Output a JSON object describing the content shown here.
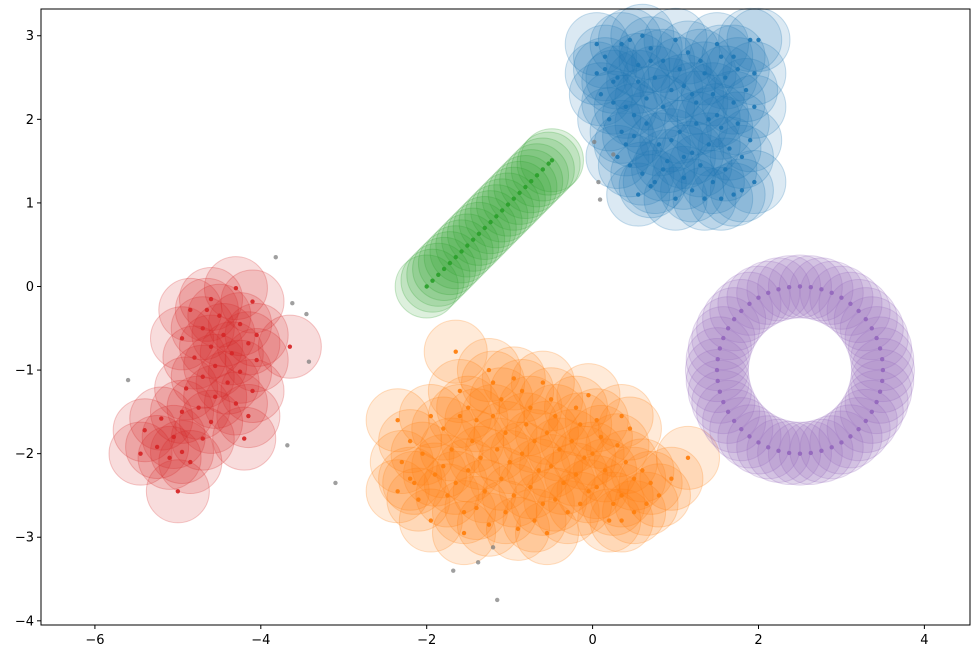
{
  "chart_data": {
    "type": "scatter",
    "title": "",
    "xlabel": "",
    "ylabel": "",
    "xlim": [
      -6.65,
      4.55
    ],
    "ylim": [
      -4.05,
      3.32
    ],
    "xticks": [
      -6,
      -4,
      -2,
      0,
      2,
      4
    ],
    "yticks": [
      -4,
      -3,
      -2,
      -1,
      0,
      1,
      2,
      3
    ],
    "xtick_labels": [
      "−6",
      "−4",
      "−2",
      "0",
      "2",
      "4"
    ],
    "ytick_labels": [
      "−4",
      "−3",
      "−2",
      "−1",
      "0",
      "1",
      "2",
      "3"
    ],
    "grid": false,
    "colors": {
      "blue": "#1f77b4",
      "orange": "#ff7f0e",
      "green": "#2ca02c",
      "red": "#d62728",
      "purple": "#9467bd",
      "noise": "#7f7f7f"
    },
    "halo_radius": 0.38,
    "series": [
      {
        "name": "blue cluster",
        "color": "blue",
        "halo": true,
        "points": [
          [
            0.05,
            2.9
          ],
          [
            0.15,
            2.6
          ],
          [
            0.3,
            2.5
          ],
          [
            0.45,
            2.95
          ],
          [
            0.6,
            3.0
          ],
          [
            0.7,
            2.85
          ],
          [
            0.85,
            2.7
          ],
          [
            1.0,
            2.95
          ],
          [
            1.15,
            2.8
          ],
          [
            1.3,
            2.7
          ],
          [
            1.5,
            2.9
          ],
          [
            1.7,
            2.75
          ],
          [
            1.9,
            2.95
          ],
          [
            2.0,
            2.95
          ],
          [
            0.1,
            2.3
          ],
          [
            0.25,
            2.2
          ],
          [
            0.4,
            2.15
          ],
          [
            0.55,
            2.45
          ],
          [
            0.75,
            2.5
          ],
          [
            0.95,
            2.35
          ],
          [
            1.1,
            2.4
          ],
          [
            1.25,
            2.2
          ],
          [
            1.45,
            2.3
          ],
          [
            1.6,
            2.5
          ],
          [
            1.85,
            2.35
          ],
          [
            1.95,
            2.15
          ],
          [
            0.2,
            2.0
          ],
          [
            0.35,
            1.85
          ],
          [
            0.5,
            1.8
          ],
          [
            0.65,
            1.95
          ],
          [
            0.8,
            1.7
          ],
          [
            1.05,
            1.85
          ],
          [
            1.2,
            1.6
          ],
          [
            1.4,
            1.7
          ],
          [
            1.55,
            1.9
          ],
          [
            1.75,
            1.95
          ],
          [
            1.9,
            1.75
          ],
          [
            0.3,
            1.55
          ],
          [
            0.45,
            1.45
          ],
          [
            0.6,
            1.35
          ],
          [
            0.75,
            1.25
          ],
          [
            0.9,
            1.5
          ],
          [
            1.1,
            1.3
          ],
          [
            1.3,
            1.45
          ],
          [
            1.45,
            1.25
          ],
          [
            1.6,
            1.4
          ],
          [
            1.8,
            1.15
          ],
          [
            1.95,
            1.25
          ],
          [
            0.55,
            1.1
          ],
          [
            0.7,
            1.2
          ],
          [
            1.0,
            1.05
          ],
          [
            1.2,
            1.15
          ],
          [
            1.55,
            1.05
          ],
          [
            1.7,
            1.1
          ],
          [
            0.15,
            2.75
          ],
          [
            0.55,
            2.65
          ],
          [
            1.35,
            2.55
          ],
          [
            1.75,
            2.6
          ],
          [
            0.85,
            2.15
          ],
          [
            1.5,
            2.05
          ],
          [
            0.25,
            2.45
          ],
          [
            1.05,
            2.6
          ],
          [
            0.65,
            2.25
          ],
          [
            1.8,
            1.55
          ],
          [
            1.25,
            1.95
          ],
          [
            0.4,
            1.7
          ],
          [
            0.95,
            1.75
          ],
          [
            1.65,
            1.65
          ],
          [
            1.35,
            1.05
          ],
          [
            0.85,
            1.4
          ],
          [
            0.05,
            2.55
          ],
          [
            1.95,
            2.55
          ],
          [
            0.35,
            2.9
          ],
          [
            1.55,
            2.75
          ],
          [
            0.7,
            2.7
          ],
          [
            1.2,
            2.3
          ],
          [
            1.4,
            2.0
          ],
          [
            1.1,
            1.55
          ],
          [
            0.5,
            2.05
          ],
          [
            1.7,
            2.2
          ]
        ]
      },
      {
        "name": "orange cluster",
        "color": "orange",
        "halo": true,
        "points": [
          [
            -2.35,
            -1.6
          ],
          [
            -2.2,
            -1.85
          ],
          [
            -2.3,
            -2.1
          ],
          [
            -2.2,
            -2.3
          ],
          [
            -2.35,
            -2.45
          ],
          [
            -2.1,
            -2.55
          ],
          [
            -1.95,
            -2.8
          ],
          [
            -1.95,
            -1.55
          ],
          [
            -1.8,
            -1.7
          ],
          [
            -1.7,
            -1.95
          ],
          [
            -1.8,
            -2.15
          ],
          [
            -1.65,
            -2.35
          ],
          [
            -1.75,
            -2.5
          ],
          [
            -1.55,
            -2.7
          ],
          [
            -1.5,
            -1.45
          ],
          [
            -1.6,
            -1.25
          ],
          [
            -1.4,
            -1.6
          ],
          [
            -1.45,
            -1.85
          ],
          [
            -1.35,
            -2.05
          ],
          [
            -1.5,
            -2.2
          ],
          [
            -1.3,
            -2.45
          ],
          [
            -1.4,
            -2.65
          ],
          [
            -1.25,
            -2.85
          ],
          [
            -1.2,
            -1.15
          ],
          [
            -1.1,
            -1.35
          ],
          [
            -1.2,
            -1.55
          ],
          [
            -1.05,
            -1.75
          ],
          [
            -1.15,
            -1.95
          ],
          [
            -1.0,
            -2.1
          ],
          [
            -1.1,
            -2.3
          ],
          [
            -0.95,
            -2.5
          ],
          [
            -1.05,
            -2.7
          ],
          [
            -0.9,
            -2.9
          ],
          [
            -0.85,
            -1.25
          ],
          [
            -0.75,
            -1.45
          ],
          [
            -0.8,
            -1.65
          ],
          [
            -0.7,
            -1.85
          ],
          [
            -0.85,
            -2.0
          ],
          [
            -0.65,
            -2.2
          ],
          [
            -0.75,
            -2.4
          ],
          [
            -0.6,
            -2.6
          ],
          [
            -0.7,
            -2.8
          ],
          [
            -0.5,
            -1.35
          ],
          [
            -0.45,
            -1.55
          ],
          [
            -0.55,
            -1.75
          ],
          [
            -0.4,
            -1.95
          ],
          [
            -0.5,
            -2.15
          ],
          [
            -0.35,
            -2.35
          ],
          [
            -0.45,
            -2.55
          ],
          [
            -0.3,
            -2.7
          ],
          [
            -0.2,
            -1.45
          ],
          [
            -0.15,
            -1.65
          ],
          [
            -0.25,
            -1.85
          ],
          [
            -0.1,
            -2.05
          ],
          [
            -0.2,
            -2.25
          ],
          [
            -0.05,
            -2.45
          ],
          [
            -0.15,
            -2.6
          ],
          [
            0.05,
            -1.6
          ],
          [
            0.1,
            -1.8
          ],
          [
            0.0,
            -2.0
          ],
          [
            0.15,
            -2.2
          ],
          [
            0.05,
            -2.4
          ],
          [
            0.25,
            -2.6
          ],
          [
            0.35,
            -1.55
          ],
          [
            0.45,
            -1.7
          ],
          [
            0.3,
            -1.9
          ],
          [
            0.4,
            -2.1
          ],
          [
            0.5,
            -2.3
          ],
          [
            0.35,
            -2.5
          ],
          [
            0.6,
            -2.2
          ],
          [
            0.7,
            -2.35
          ],
          [
            0.8,
            -2.5
          ],
          [
            0.95,
            -2.3
          ],
          [
            1.15,
            -2.05
          ],
          [
            0.5,
            -2.7
          ],
          [
            0.35,
            -2.8
          ],
          [
            -1.65,
            -0.78
          ],
          [
            -1.9,
            -2.25
          ],
          [
            -2.05,
            -2.0
          ],
          [
            -1.25,
            -1.0
          ],
          [
            -0.6,
            -1.15
          ],
          [
            -0.05,
            -1.3
          ],
          [
            0.2,
            -2.8
          ],
          [
            -0.95,
            -1.1
          ],
          [
            -1.55,
            -2.95
          ],
          [
            -0.55,
            -2.95
          ],
          [
            -2.15,
            -2.35
          ],
          [
            0.65,
            -2.6
          ],
          [
            -1.6,
            -1.55
          ]
        ]
      },
      {
        "name": "green diagonal",
        "color": "green",
        "halo": true,
        "points": [
          [
            -2.0,
            0.0
          ],
          [
            -1.93,
            0.07
          ],
          [
            -1.86,
            0.14
          ],
          [
            -1.79,
            0.21
          ],
          [
            -1.72,
            0.28
          ],
          [
            -1.65,
            0.35
          ],
          [
            -1.58,
            0.42
          ],
          [
            -1.51,
            0.49
          ],
          [
            -1.44,
            0.56
          ],
          [
            -1.37,
            0.63
          ],
          [
            -1.3,
            0.7
          ],
          [
            -1.23,
            0.77
          ],
          [
            -1.16,
            0.84
          ],
          [
            -1.09,
            0.91
          ],
          [
            -1.02,
            0.98
          ],
          [
            -0.95,
            1.05
          ],
          [
            -0.88,
            1.12
          ],
          [
            -0.81,
            1.19
          ],
          [
            -0.74,
            1.26
          ],
          [
            -0.67,
            1.33
          ],
          [
            -0.6,
            1.4
          ],
          [
            -0.53,
            1.47
          ],
          [
            -0.49,
            1.51
          ]
        ]
      },
      {
        "name": "red cluster",
        "color": "red",
        "halo": true,
        "points": [
          [
            -4.3,
            -0.02
          ],
          [
            -4.6,
            -0.15
          ],
          [
            -4.1,
            -0.18
          ],
          [
            -4.85,
            -0.28
          ],
          [
            -4.5,
            -0.35
          ],
          [
            -4.25,
            -0.45
          ],
          [
            -4.7,
            -0.5
          ],
          [
            -4.45,
            -0.58
          ],
          [
            -4.95,
            -0.62
          ],
          [
            -4.15,
            -0.68
          ],
          [
            -4.6,
            -0.72
          ],
          [
            -4.35,
            -0.8
          ],
          [
            -4.8,
            -0.85
          ],
          [
            -4.05,
            -0.88
          ],
          [
            -4.55,
            -0.95
          ],
          [
            -4.25,
            -1.02
          ],
          [
            -4.7,
            -1.08
          ],
          [
            -4.4,
            -1.15
          ],
          [
            -4.9,
            -1.22
          ],
          [
            -4.1,
            -1.25
          ],
          [
            -4.55,
            -1.32
          ],
          [
            -4.3,
            -1.4
          ],
          [
            -4.75,
            -1.45
          ],
          [
            -4.15,
            -1.55
          ],
          [
            -4.95,
            -1.5
          ],
          [
            -4.6,
            -1.62
          ],
          [
            -5.2,
            -1.58
          ],
          [
            -5.4,
            -1.72
          ],
          [
            -5.05,
            -1.8
          ],
          [
            -4.7,
            -1.82
          ],
          [
            -5.25,
            -1.92
          ],
          [
            -4.95,
            -1.98
          ],
          [
            -5.45,
            -2.0
          ],
          [
            -5.1,
            -2.05
          ],
          [
            -4.85,
            -2.1
          ],
          [
            -5.0,
            -2.45
          ],
          [
            -4.2,
            -1.82
          ],
          [
            -3.65,
            -0.72
          ],
          [
            -4.65,
            -0.28
          ],
          [
            -4.05,
            -0.58
          ]
        ]
      },
      {
        "name": "purple ring",
        "color": "purple",
        "halo": true,
        "ring": {
          "cx": 2.5,
          "cy": -1.0,
          "r": 1.0,
          "n": 48
        }
      },
      {
        "name": "noise",
        "color": "noise",
        "halo": false,
        "points": [
          [
            -3.82,
            0.35
          ],
          [
            -3.62,
            -0.2
          ],
          [
            -3.45,
            -0.33
          ],
          [
            -3.42,
            -0.9
          ],
          [
            -5.6,
            -1.12
          ],
          [
            -3.68,
            -1.9
          ],
          [
            -3.1,
            -2.35
          ],
          [
            -1.68,
            -3.4
          ],
          [
            -1.38,
            -3.3
          ],
          [
            -1.2,
            -3.12
          ],
          [
            -1.15,
            -3.75
          ],
          [
            0.02,
            1.73
          ],
          [
            0.07,
            1.25
          ],
          [
            0.09,
            1.04
          ],
          [
            0.25,
            1.58
          ]
        ]
      }
    ]
  }
}
